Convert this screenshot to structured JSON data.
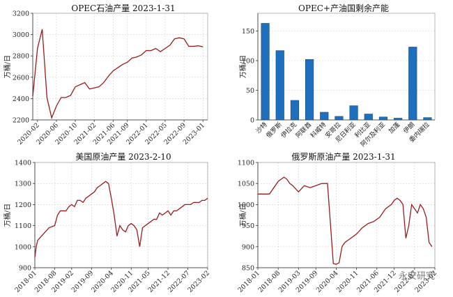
{
  "watermark": "永安研究",
  "chart_data": [
    {
      "type": "line",
      "title": "OPEC石油产量 2023-1-31",
      "ylabel": "万桶/日",
      "ylim": [
        2200,
        3200
      ],
      "yticks": [
        2200,
        2400,
        2600,
        2800,
        3000,
        3200
      ],
      "xlim": [
        "2020-01",
        "2023-02"
      ],
      "xticks": [
        "2020-02",
        "2020-06",
        "2020-10",
        "2021-02",
        "2021-06",
        "2021-09",
        "2022-01",
        "2022-05",
        "2022-09",
        "2023-01"
      ],
      "color": "#9b1b1b",
      "x": [
        "2020-01",
        "2020-02",
        "2020-03",
        "2020-04",
        "2020-05",
        "2020-06",
        "2020-07",
        "2020-08",
        "2020-09",
        "2020-10",
        "2020-11",
        "2020-12",
        "2021-01",
        "2021-02",
        "2021-03",
        "2021-04",
        "2021-05",
        "2021-06",
        "2021-07",
        "2021-08",
        "2021-09",
        "2021-10",
        "2021-11",
        "2021-12",
        "2022-01",
        "2022-02",
        "2022-03",
        "2022-04",
        "2022-05",
        "2022-06",
        "2022-07",
        "2022-08",
        "2022-09",
        "2022-10",
        "2022-11",
        "2022-12",
        "2023-01"
      ],
      "y": [
        2420,
        2870,
        3050,
        2410,
        2220,
        2330,
        2410,
        2410,
        2430,
        2510,
        2530,
        2550,
        2490,
        2500,
        2510,
        2550,
        2610,
        2660,
        2690,
        2720,
        2740,
        2780,
        2790,
        2810,
        2850,
        2850,
        2870,
        2840,
        2870,
        2900,
        2960,
        2970,
        2960,
        2890,
        2890,
        2895,
        2885
      ]
    },
    {
      "type": "bar",
      "title": "OPEC+产油国剩余产能",
      "ylabel": "万桶/日",
      "ylim": [
        0,
        180
      ],
      "yticks": [
        0,
        50,
        100,
        150
      ],
      "color": "#1f6fbf",
      "categories": [
        "沙特",
        "俄罗斯",
        "伊拉克",
        "阿联酋",
        "科威特",
        "安哥拉",
        "尼日利亚",
        "利比亚",
        "阿尔及利亚",
        "加蓬",
        "伊朗",
        "委内瑞拉"
      ],
      "values": [
        163,
        117,
        33,
        102,
        13,
        6,
        24,
        10,
        5,
        3,
        123,
        4
      ]
    },
    {
      "type": "line",
      "title": "美国原油产量 2023-2-10",
      "ylabel": "万桶/日",
      "ylim": [
        900,
        1400
      ],
      "yticks": [
        900,
        1000,
        1100,
        1200,
        1300,
        1400
      ],
      "xlim": [
        "2018-01",
        "2023-02"
      ],
      "xticks": [
        "2018-01",
        "2018-08",
        "2019-02",
        "2019-09",
        "2020-04",
        "2020-11",
        "2021-05",
        "2021-12",
        "2022-07",
        "2023-02"
      ],
      "color": "#9b1b1b",
      "x": [
        "2018-01",
        "2018-01",
        "2018-02",
        "2018-04",
        "2018-06",
        "2018-08",
        "2018-09",
        "2018-10",
        "2018-11",
        "2018-12",
        "2019-01",
        "2019-02",
        "2019-03",
        "2019-04",
        "2019-05",
        "2019-06",
        "2019-07",
        "2019-08",
        "2019-09",
        "2019-10",
        "2019-11",
        "2019-12",
        "2020-01",
        "2020-02",
        "2020-03",
        "2020-04",
        "2020-05",
        "2020-06",
        "2020-07",
        "2020-08",
        "2020-09",
        "2020-10",
        "2020-11",
        "2020-12",
        "2021-01",
        "2021-02",
        "2021-03",
        "2021-04",
        "2021-05",
        "2021-06",
        "2021-07",
        "2021-08",
        "2021-09",
        "2021-10",
        "2021-11",
        "2021-12",
        "2022-01",
        "2022-02",
        "2022-03",
        "2022-04",
        "2022-05",
        "2022-06",
        "2022-07",
        "2022-08",
        "2022-09",
        "2022-10",
        "2022-11",
        "2022-12",
        "2023-01",
        "2023-02"
      ],
      "y": [
        950,
        1000,
        1030,
        1060,
        1090,
        1100,
        1150,
        1170,
        1170,
        1170,
        1190,
        1200,
        1190,
        1220,
        1220,
        1210,
        1230,
        1240,
        1250,
        1260,
        1280,
        1290,
        1300,
        1310,
        1300,
        1230,
        1150,
        1050,
        1100,
        1080,
        1070,
        1100,
        1110,
        1100,
        1080,
        1000,
        1090,
        1100,
        1110,
        1120,
        1130,
        1130,
        1160,
        1150,
        1160,
        1170,
        1150,
        1170,
        1170,
        1180,
        1190,
        1200,
        1200,
        1200,
        1210,
        1210,
        1210,
        1220,
        1220,
        1230
      ]
    },
    {
      "type": "line",
      "title": "俄罗斯原油产量 2023-1-31",
      "ylabel": "万桶/日",
      "ylim": [
        850,
        1100
      ],
      "yticks": [
        850,
        900,
        950,
        1000,
        1050,
        1100
      ],
      "xlim": [
        "2018-01",
        "2023-02"
      ],
      "xticks": [
        "2018-01",
        "2018-08",
        "2019-03",
        "2019-09",
        "2020-04",
        "2020-11",
        "2021-06",
        "2021-12",
        "2022-07",
        "2023-02"
      ],
      "color": "#9b1b1b",
      "x": [
        "2018-01",
        "2018-03",
        "2018-05",
        "2018-07",
        "2018-08",
        "2018-09",
        "2018-10",
        "2018-11",
        "2018-12",
        "2019-01",
        "2019-03",
        "2019-05",
        "2019-07",
        "2019-09",
        "2019-11",
        "2020-01",
        "2020-03",
        "2020-04",
        "2020-05",
        "2020-06",
        "2020-07",
        "2020-09",
        "2020-11",
        "2021-01",
        "2021-03",
        "2021-05",
        "2021-07",
        "2021-09",
        "2021-11",
        "2021-12",
        "2022-01",
        "2022-02",
        "2022-03",
        "2022-04",
        "2022-05",
        "2022-06",
        "2022-07",
        "2022-08",
        "2022-09",
        "2022-10",
        "2022-11",
        "2022-12",
        "2023-01"
      ],
      "y": [
        1025,
        1025,
        1025,
        1045,
        1055,
        1060,
        1065,
        1060,
        1050,
        1045,
        1030,
        1045,
        1040,
        1045,
        1050,
        1050,
        860,
        858,
        862,
        900,
        910,
        920,
        930,
        945,
        955,
        960,
        970,
        990,
        1000,
        1010,
        1015,
        1010,
        1000,
        920,
        950,
        1000,
        990,
        980,
        1000,
        990,
        970,
        910,
        900
      ]
    }
  ]
}
